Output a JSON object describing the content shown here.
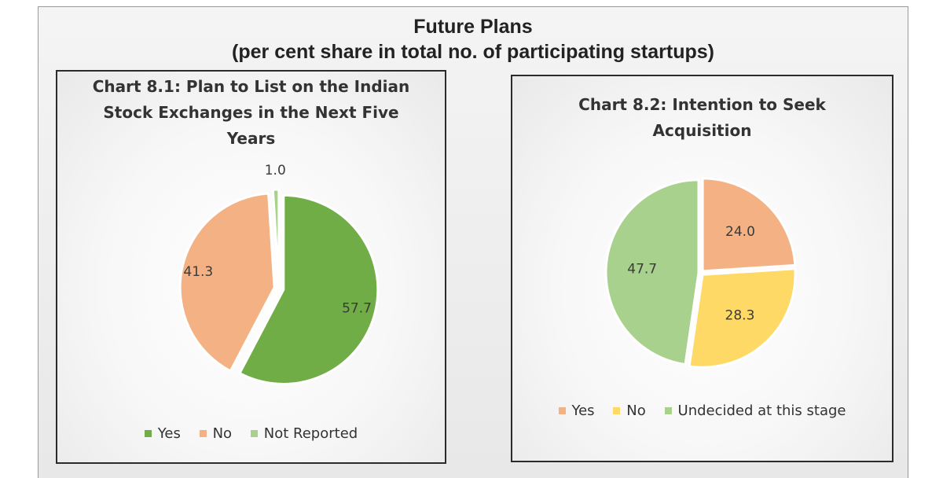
{
  "page": {
    "title_line1": "Future Plans",
    "title_line2": "(per cent share in total no. of participating startups)"
  },
  "chart_data": [
    {
      "type": "pie",
      "title_lines": [
        "Chart 8.1:  Plan to List on the Indian",
        "Stock Exchanges in the Next Five",
        "Years"
      ],
      "categories": [
        "Yes",
        "No",
        "Not Reported"
      ],
      "values": [
        57.7,
        41.3,
        1.0
      ],
      "labels": [
        "57.7",
        "41.3",
        "1.0"
      ],
      "colors": [
        "#70ad47",
        "#f4b183",
        "#a9d18e"
      ],
      "legend_position": "bottom"
    },
    {
      "type": "pie",
      "title_lines": [
        "Chart 8.2:  Intention to Seek",
        "Acquisition"
      ],
      "categories": [
        "Yes",
        "No",
        "Undecided at this stage"
      ],
      "values": [
        24.0,
        28.3,
        47.7
      ],
      "labels": [
        "24.0",
        "28.3",
        "47.7"
      ],
      "colors": [
        "#f4b183",
        "#ffd966",
        "#a9d18e"
      ],
      "legend_position": "bottom"
    }
  ]
}
